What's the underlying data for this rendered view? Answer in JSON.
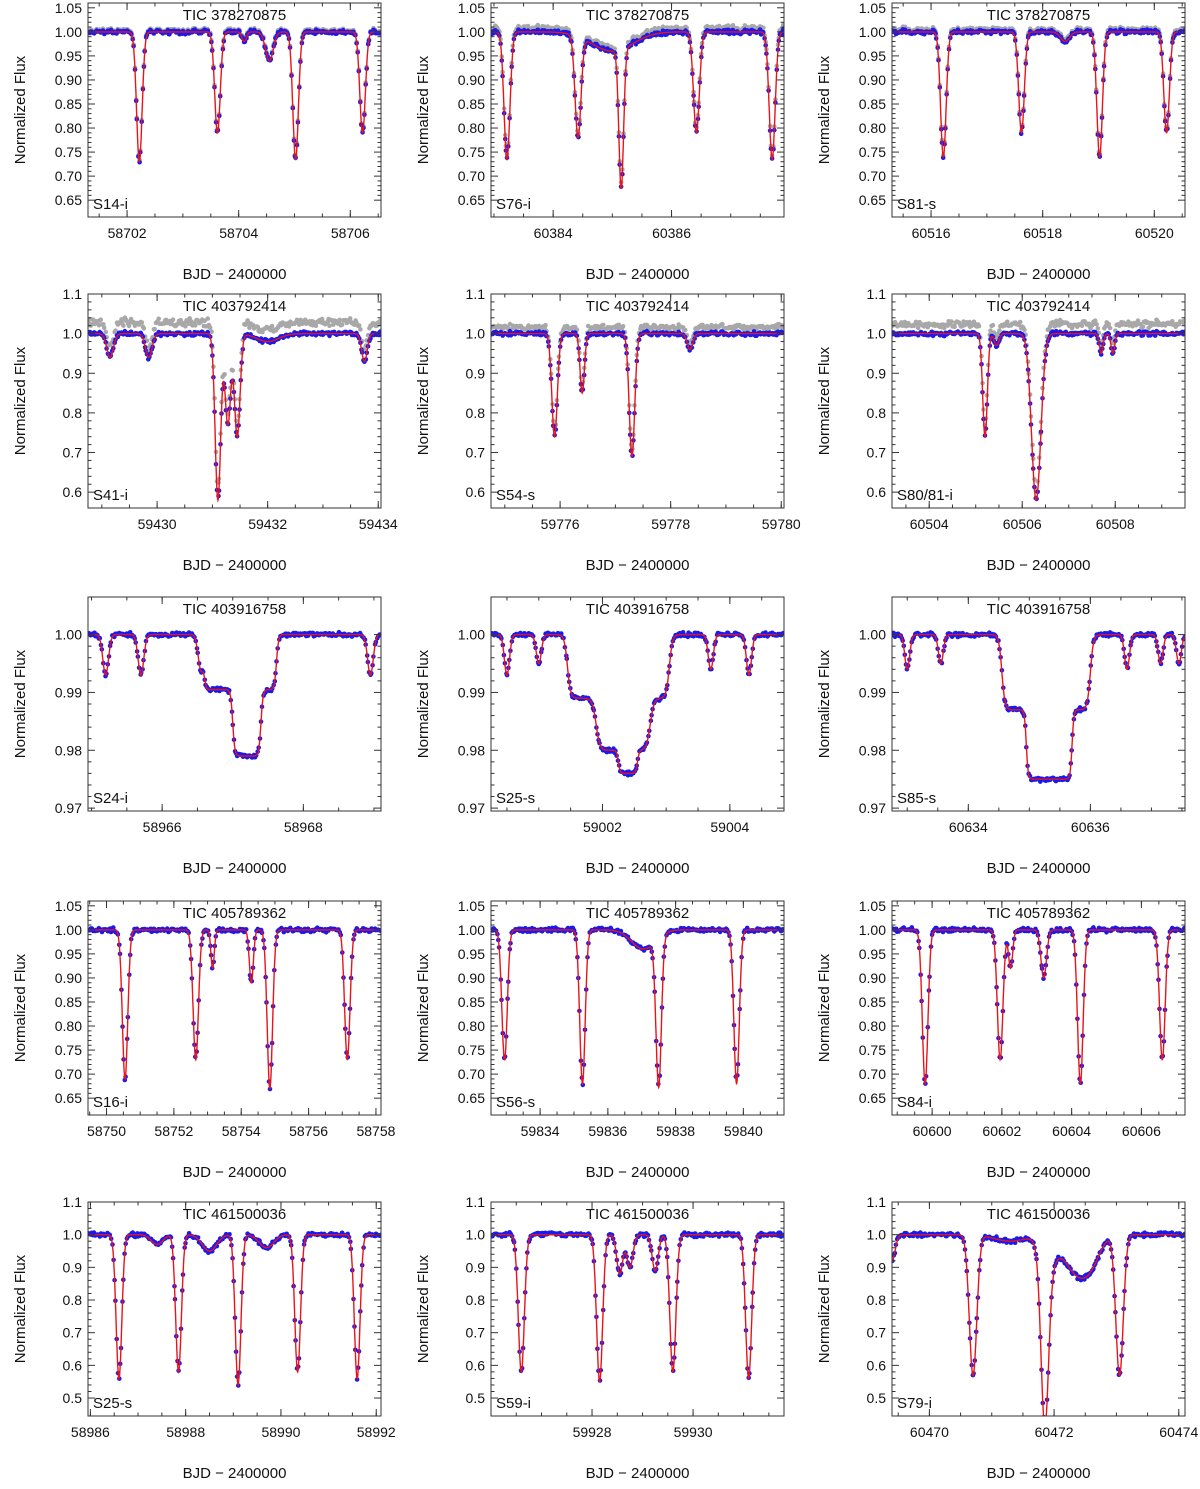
{
  "colors": {
    "model": "#e8141a",
    "data": "#1a1aee",
    "raw": "#a8a8a8",
    "raw_alt": "#4a86b0",
    "frame": "#333333"
  },
  "chart_data": [
    {
      "type": "line",
      "title": "TIC 378270875",
      "panel_label": "S14-i",
      "xlabel": "BJD − 2400000",
      "ylabel": "Normalized Flux",
      "xlim": [
        58701.3,
        58706.55
      ],
      "ylim": [
        0.615,
        1.06
      ],
      "xticks": [
        58702,
        58704,
        58706
      ],
      "yticks": [
        0.65,
        0.7,
        0.75,
        0.8,
        0.85,
        0.9,
        0.95,
        1.0,
        1.05
      ],
      "ytick_labels": [
        "0.65",
        "0.70",
        "0.75",
        "0.80",
        "0.85",
        "0.90",
        "0.95",
        "1.00",
        "1.05"
      ],
      "raw_offset": 0.004,
      "dips": [
        [
          58702.22,
          0.27,
          0.05
        ],
        [
          58703.62,
          0.21,
          0.05
        ],
        [
          58705.02,
          0.265,
          0.05
        ],
        [
          58706.22,
          0.21,
          0.05
        ],
        [
          58704.1,
          0.02,
          0.04
        ],
        [
          58704.55,
          0.06,
          0.07
        ]
      ]
    },
    {
      "type": "line",
      "title": "TIC 378270875",
      "panel_label": "S76-i",
      "xlabel": "BJD − 2400000",
      "ylabel": "Normalized Flux",
      "xlim": [
        60382.95,
        60387.9
      ],
      "ylim": [
        0.615,
        1.06
      ],
      "xticks": [
        60384,
        60386
      ],
      "yticks": [
        0.65,
        0.7,
        0.75,
        0.8,
        0.85,
        0.9,
        0.95,
        1.0,
        1.05
      ],
      "ytick_labels": [
        "0.65",
        "0.70",
        "0.75",
        "0.80",
        "0.85",
        "0.90",
        "0.95",
        "1.00",
        "1.05"
      ],
      "raw_offset": 0.01,
      "dips": [
        [
          60383.22,
          0.265,
          0.05
        ],
        [
          60384.42,
          0.21,
          0.05
        ],
        [
          60385.15,
          0.29,
          0.04
        ],
        [
          60386.42,
          0.21,
          0.05
        ],
        [
          60387.7,
          0.265,
          0.05
        ],
        [
          60385.0,
          0.04,
          0.35
        ]
      ]
    },
    {
      "type": "line",
      "title": "TIC 378270875",
      "panel_label": "S81-s",
      "xlabel": "BJD − 2400000",
      "ylabel": "Normalized Flux",
      "xlim": [
        60515.3,
        60520.55
      ],
      "ylim": [
        0.615,
        1.06
      ],
      "xticks": [
        60516,
        60518,
        60520
      ],
      "yticks": [
        0.65,
        0.7,
        0.75,
        0.8,
        0.85,
        0.9,
        0.95,
        1.0,
        1.05
      ],
      "ytick_labels": [
        "0.65",
        "0.70",
        "0.75",
        "0.80",
        "0.85",
        "0.90",
        "0.95",
        "1.00",
        "1.05"
      ],
      "raw_offset": 0.006,
      "dips": [
        [
          60516.22,
          0.26,
          0.05
        ],
        [
          60517.62,
          0.21,
          0.05
        ],
        [
          60519.02,
          0.26,
          0.05
        ],
        [
          60520.22,
          0.21,
          0.05
        ],
        [
          60518.4,
          0.02,
          0.08
        ]
      ]
    },
    {
      "type": "line",
      "title": "TIC 403792414",
      "panel_label": "S41-i",
      "xlabel": "BJD − 2400000",
      "ylabel": "Normalized Flux",
      "xlim": [
        59428.75,
        59434.05
      ],
      "ylim": [
        0.56,
        1.1
      ],
      "xticks": [
        59430,
        59432,
        59434
      ],
      "yticks": [
        0.6,
        0.7,
        0.8,
        0.9,
        1.0,
        1.1
      ],
      "ytick_labels": [
        "0.6",
        "0.7",
        "0.8",
        "0.9",
        "1.0",
        "1.1"
      ],
      "raw_offset": 0.035,
      "dips": [
        [
          59429.15,
          0.06,
          0.06
        ],
        [
          59429.85,
          0.06,
          0.06
        ],
        [
          59431.1,
          0.42,
          0.05
        ],
        [
          59431.28,
          0.23,
          0.05
        ],
        [
          59431.45,
          0.26,
          0.05
        ],
        [
          59432.0,
          0.02,
          0.2
        ],
        [
          59433.75,
          0.07,
          0.05
        ]
      ]
    },
    {
      "type": "line",
      "title": "TIC 403792414",
      "panel_label": "S54-s",
      "xlabel": "BJD − 2400000",
      "ylabel": "Normalized Flux",
      "xlim": [
        59774.75,
        59780.05
      ],
      "ylim": [
        0.56,
        1.1
      ],
      "xticks": [
        59776,
        59778,
        59780
      ],
      "yticks": [
        0.6,
        0.7,
        0.8,
        0.9,
        1.0,
        1.1
      ],
      "ytick_labels": [
        "0.6",
        "0.7",
        "0.8",
        "0.9",
        "1.0",
        "1.1"
      ],
      "raw_offset": 0.02,
      "dips": [
        [
          59775.9,
          0.26,
          0.05
        ],
        [
          59776.4,
          0.15,
          0.04
        ],
        [
          59777.3,
          0.31,
          0.05
        ],
        [
          59778.35,
          0.04,
          0.05
        ]
      ]
    },
    {
      "type": "line",
      "title": "TIC 403792414",
      "panel_label": "S80/81-i",
      "xlabel": "BJD − 2400000",
      "ylabel": "Normalized Flux",
      "xlim": [
        60503.2,
        60509.5
      ],
      "ylim": [
        0.56,
        1.1
      ],
      "xticks": [
        60504,
        60506,
        60508
      ],
      "yticks": [
        0.6,
        0.7,
        0.8,
        0.9,
        1.0,
        1.1
      ],
      "ytick_labels": [
        "0.6",
        "0.7",
        "0.8",
        "0.9",
        "1.0",
        "1.1"
      ],
      "raw_offset": 0.03,
      "dips": [
        [
          60505.2,
          0.26,
          0.05
        ],
        [
          60505.45,
          0.03,
          0.05
        ],
        [
          60506.3,
          0.42,
          0.1
        ],
        [
          60507.7,
          0.05,
          0.04
        ],
        [
          60507.95,
          0.05,
          0.04
        ]
      ]
    },
    {
      "type": "line",
      "title": "TIC 403916758",
      "panel_label": "S24-i",
      "xlabel": "BJD − 2400000",
      "ylabel": "Normalized Flux",
      "xlim": [
        58964.95,
        58969.1
      ],
      "ylim": [
        0.9695,
        1.0065
      ],
      "xticks": [
        58966,
        58968
      ],
      "yticks": [
        0.97,
        0.98,
        0.99,
        1.0
      ],
      "ytick_labels": [
        "0.97",
        "0.98",
        "0.99",
        "1.00"
      ],
      "raw_offset": 0,
      "dips": [
        [
          58965.2,
          0.007,
          0.04
        ],
        [
          58965.7,
          0.007,
          0.04
        ],
        [
          58966.55,
          0.006,
          0.04
        ],
        [
          58968.95,
          0.007,
          0.04
        ]
      ],
      "plateaus": [
        [
          58966.6,
          58967.62,
          0.0095,
          0.06
        ],
        [
          58967.0,
          58967.4,
          0.0115,
          0.06
        ]
      ]
    },
    {
      "type": "line",
      "title": "TIC 403916758",
      "panel_label": "S25-s",
      "xlabel": "BJD − 2400000",
      "ylabel": "Normalized Flux",
      "xlim": [
        59000.25,
        59004.85
      ],
      "ylim": [
        0.9695,
        1.0065
      ],
      "xticks": [
        59002,
        59004
      ],
      "yticks": [
        0.97,
        0.98,
        0.99,
        1.0
      ],
      "ytick_labels": [
        "0.97",
        "0.98",
        "0.99",
        "1.00"
      ],
      "raw_offset": 0,
      "dips": [
        [
          59000.5,
          0.007,
          0.04
        ],
        [
          59001.0,
          0.005,
          0.04
        ],
        [
          59003.7,
          0.006,
          0.04
        ],
        [
          59004.3,
          0.007,
          0.04
        ]
      ],
      "plateaus": [
        [
          59001.45,
          59003.05,
          0.011,
          0.1
        ],
        [
          59001.9,
          59002.75,
          0.009,
          0.12
        ],
        [
          59002.25,
          59002.55,
          0.004,
          0.06
        ]
      ]
    },
    {
      "type": "line",
      "title": "TIC 403916758",
      "panel_label": "S85-s",
      "xlabel": "BJD − 2400000",
      "ylabel": "Normalized Flux",
      "xlim": [
        60632.75,
        60637.55
      ],
      "ylim": [
        0.9695,
        1.0065
      ],
      "xticks": [
        60634,
        60636
      ],
      "yticks": [
        0.97,
        0.98,
        0.99,
        1.0
      ],
      "ytick_labels": [
        "0.97",
        "0.98",
        "0.99",
        "1.00"
      ],
      "raw_offset": 0,
      "dips": [
        [
          60633.0,
          0.006,
          0.04
        ],
        [
          60633.55,
          0.005,
          0.04
        ],
        [
          60636.6,
          0.006,
          0.04
        ],
        [
          60637.15,
          0.005,
          0.04
        ],
        [
          60637.45,
          0.005,
          0.04
        ]
      ],
      "plateaus": [
        [
          60634.55,
          60636.0,
          0.013,
          0.1
        ],
        [
          60634.95,
          60635.7,
          0.012,
          0.06
        ]
      ]
    },
    {
      "type": "line",
      "title": "TIC 405789362",
      "panel_label": "S16-i",
      "xlabel": "BJD − 2400000",
      "ylabel": "Normalized Flux",
      "xlim": [
        58749.45,
        58758.15
      ],
      "ylim": [
        0.615,
        1.06
      ],
      "xticks": [
        58750,
        58752,
        58754,
        58756,
        58758
      ],
      "yticks": [
        0.65,
        0.7,
        0.75,
        0.8,
        0.85,
        0.9,
        0.95,
        1.0,
        1.05
      ],
      "ytick_labels": [
        "0.65",
        "0.70",
        "0.75",
        "0.80",
        "0.85",
        "0.90",
        "0.95",
        "1.00",
        "1.05"
      ],
      "raw_offset": 0,
      "dips": [
        [
          58750.55,
          0.31,
          0.08
        ],
        [
          58752.65,
          0.27,
          0.08
        ],
        [
          58753.15,
          0.08,
          0.05
        ],
        [
          58754.3,
          0.11,
          0.06
        ],
        [
          58754.85,
          0.33,
          0.08
        ],
        [
          58757.15,
          0.27,
          0.08
        ]
      ]
    },
    {
      "type": "line",
      "title": "TIC 405789362",
      "panel_label": "S56-s",
      "xlabel": "BJD − 2400000",
      "ylabel": "Normalized Flux",
      "xlim": [
        59832.55,
        59841.2
      ],
      "ylim": [
        0.615,
        1.06
      ],
      "xticks": [
        59834,
        59836,
        59838,
        59840
      ],
      "yticks": [
        0.65,
        0.7,
        0.75,
        0.8,
        0.85,
        0.9,
        0.95,
        1.0,
        1.05
      ],
      "ytick_labels": [
        "0.65",
        "0.70",
        "0.75",
        "0.80",
        "0.85",
        "0.90",
        "0.95",
        "1.00",
        "1.05"
      ],
      "raw_offset": 0,
      "dips": [
        [
          59832.95,
          0.27,
          0.08
        ],
        [
          59835.25,
          0.32,
          0.08
        ],
        [
          59837.5,
          0.31,
          0.08
        ],
        [
          59839.8,
          0.32,
          0.08
        ],
        [
          59837.05,
          0.04,
          0.35
        ]
      ]
    },
    {
      "type": "line",
      "title": "TIC 405789362",
      "panel_label": "S84-i",
      "xlabel": "BJD − 2400000",
      "ylabel": "Normalized Flux",
      "xlim": [
        60598.85,
        60607.25
      ],
      "ylim": [
        0.615,
        1.06
      ],
      "xticks": [
        60600,
        60602,
        60604,
        60606
      ],
      "yticks": [
        0.65,
        0.7,
        0.75,
        0.8,
        0.85,
        0.9,
        0.95,
        1.0,
        1.05
      ],
      "ytick_labels": [
        "0.65",
        "0.70",
        "0.75",
        "0.80",
        "0.85",
        "0.90",
        "0.95",
        "1.00",
        "1.05"
      ],
      "raw_offset": 0,
      "dips": [
        [
          60599.8,
          0.32,
          0.08
        ],
        [
          60601.95,
          0.27,
          0.08
        ],
        [
          60602.25,
          0.08,
          0.06
        ],
        [
          60603.2,
          0.1,
          0.08
        ],
        [
          60604.25,
          0.32,
          0.08
        ],
        [
          60606.6,
          0.27,
          0.08
        ]
      ]
    },
    {
      "type": "line",
      "title": "TIC 461500036",
      "panel_label": "S25-s",
      "xlabel": "BJD − 2400000",
      "ylabel": "Normalized Flux",
      "xlim": [
        58985.95,
        58992.1
      ],
      "ylim": [
        0.445,
        1.1
      ],
      "xticks": [
        58986,
        58988,
        58990,
        58992
      ],
      "yticks": [
        0.5,
        0.6,
        0.7,
        0.8,
        0.9,
        1.0,
        1.1
      ],
      "ytick_labels": [
        "0.5",
        "0.6",
        "0.7",
        "0.8",
        "0.9",
        "1.0",
        "1.1"
      ],
      "raw_offset": 0,
      "dips": [
        [
          58986.6,
          0.44,
          0.06
        ],
        [
          58987.85,
          0.42,
          0.06
        ],
        [
          58989.1,
          0.46,
          0.06
        ],
        [
          58990.35,
          0.42,
          0.06
        ],
        [
          58991.6,
          0.44,
          0.06
        ],
        [
          58987.4,
          0.03,
          0.12
        ],
        [
          58988.5,
          0.05,
          0.15
        ],
        [
          58989.7,
          0.04,
          0.15
        ]
      ]
    },
    {
      "type": "line",
      "title": "TIC 461500036",
      "panel_label": "S59-i",
      "xlabel": "BJD − 2400000",
      "ylabel": "Normalized Flux",
      "xlim": [
        59926.0,
        59931.8
      ],
      "ylim": [
        0.445,
        1.1
      ],
      "xticks": [
        59928,
        59930
      ],
      "yticks": [
        0.5,
        0.6,
        0.7,
        0.8,
        0.9,
        1.0,
        1.1
      ],
      "ytick_labels": [
        "0.5",
        "0.6",
        "0.7",
        "0.8",
        "0.9",
        "1.0",
        "1.1"
      ],
      "raw_offset": 0,
      "dips": [
        [
          59926.6,
          0.42,
          0.06
        ],
        [
          59928.15,
          0.45,
          0.06
        ],
        [
          59928.55,
          0.12,
          0.06
        ],
        [
          59928.75,
          0.1,
          0.06
        ],
        [
          59929.25,
          0.11,
          0.06
        ],
        [
          59929.6,
          0.42,
          0.06
        ],
        [
          59931.1,
          0.44,
          0.06
        ]
      ]
    },
    {
      "type": "line",
      "title": "TIC 461500036",
      "panel_label": "S79-i",
      "xlabel": "BJD − 2400000",
      "ylabel": "Normalized Flux",
      "xlim": [
        60469.4,
        60474.1
      ],
      "ylim": [
        0.445,
        1.1
      ],
      "xticks": [
        60470,
        60472,
        60474
      ],
      "yticks": [
        0.5,
        0.6,
        0.7,
        0.8,
        0.9,
        1.0,
        1.1
      ],
      "ytick_labels": [
        "0.5",
        "0.6",
        "0.7",
        "0.8",
        "0.9",
        "1.0",
        "1.1"
      ],
      "raw_offset": 0,
      "dips": [
        [
          60469.4,
          0.08,
          0.05
        ],
        [
          60470.7,
          0.43,
          0.06
        ],
        [
          60471.85,
          0.5,
          0.06
        ],
        [
          60473.05,
          0.43,
          0.06
        ],
        [
          60471.3,
          0.02,
          0.25
        ],
        [
          60471.9,
          0.09,
          0.12
        ],
        [
          60472.35,
          0.11,
          0.2
        ],
        [
          60472.6,
          0.06,
          0.15
        ]
      ]
    }
  ]
}
